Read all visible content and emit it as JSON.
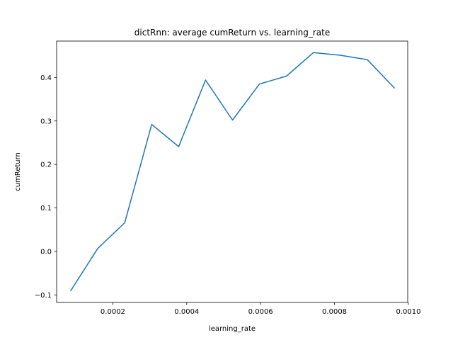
{
  "chart_data": {
    "type": "line",
    "title": "dictRnn: average cumReturn vs. learning_rate",
    "xlabel": "learning_rate",
    "ylabel": "cumReturn",
    "xlim": [
      4.78e-05,
      0.0009982
    ],
    "ylim": [
      -0.1172,
      0.4836
    ],
    "x_ticks": [
      {
        "value": 0.0002,
        "label": "0.0002"
      },
      {
        "value": 0.0004,
        "label": "0.0004"
      },
      {
        "value": 0.0006,
        "label": "0.0006"
      },
      {
        "value": 0.0008,
        "label": "0.0008"
      },
      {
        "value": 0.001,
        "label": "0.0010"
      }
    ],
    "y_ticks": [
      {
        "value": -0.1,
        "label": "−0.1"
      },
      {
        "value": 0.0,
        "label": "0.0"
      },
      {
        "value": 0.1,
        "label": "0.1"
      },
      {
        "value": 0.2,
        "label": "0.2"
      },
      {
        "value": 0.3,
        "label": "0.3"
      },
      {
        "value": 0.4,
        "label": "0.4"
      }
    ],
    "grid": false,
    "color": "#1f77b4",
    "series": [
      {
        "x": [
          8.62e-05,
          0.0001592,
          0.0002321,
          0.0003051,
          0.0003781,
          0.000451,
          0.000524,
          0.0005969,
          0.0006699,
          0.0007428,
          0.0008158,
          0.0008887,
          0.0009617
        ],
        "y": [
          -0.09,
          0.007,
          0.066,
          0.292,
          0.241,
          0.394,
          0.302,
          0.385,
          0.403,
          0.457,
          0.451,
          0.441,
          0.376
        ]
      }
    ]
  }
}
